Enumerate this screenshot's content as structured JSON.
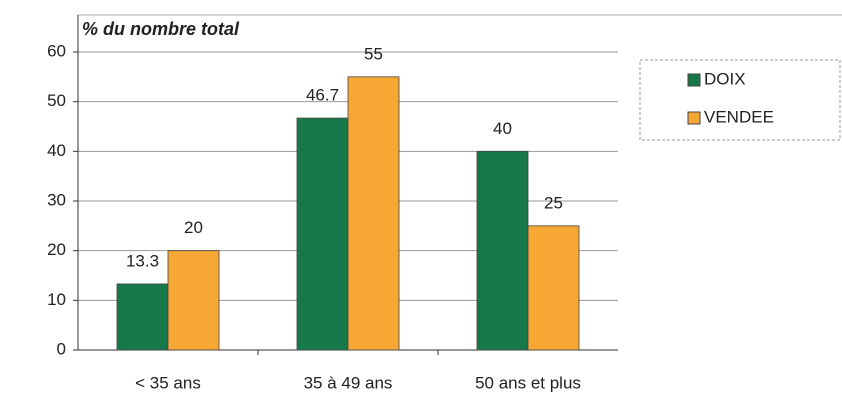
{
  "chart_data": {
    "type": "bar",
    "title": "% du nombre total",
    "categories": [
      "< 35 ans",
      "35 à 49 ans",
      "50 ans et plus"
    ],
    "series": [
      {
        "name": "DOIX",
        "color": "#17784a",
        "values": [
          13.3,
          46.7,
          40
        ]
      },
      {
        "name": "VENDEE",
        "color": "#f7a733",
        "values": [
          20,
          55,
          25
        ]
      }
    ],
    "ylim": [
      0,
      60
    ],
    "yticks": [
      0,
      10,
      20,
      30,
      40,
      50,
      60
    ],
    "grid": true,
    "legend": "right"
  }
}
